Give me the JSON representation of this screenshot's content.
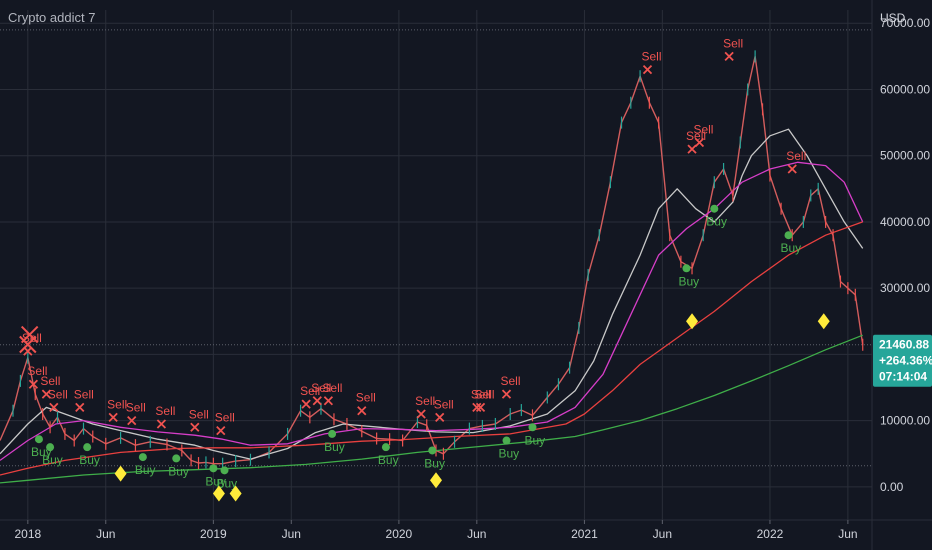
{
  "header": {
    "title": "Crypto addict 7"
  },
  "colors": {
    "background": "#131722",
    "grid": "#2a2e39",
    "price": "#d35d5d",
    "ma_white": "#c8c8c8",
    "ma_magenta": "#d63ec8",
    "ma_red": "#e8403f",
    "ma_green": "#3fae49",
    "sell": "#f05350",
    "buy": "#4caf50",
    "diamond": "#ffeb3b",
    "price_label": "#26a69a"
  },
  "price_tag": {
    "price": "21460.88",
    "change": "+264.36%",
    "countdown": "07:14:04"
  },
  "chart_data": {
    "type": "line",
    "title": "",
    "currency_label": "USD",
    "y_ticks": [
      "70000.00",
      "60000.00",
      "50000.00",
      "40000.00",
      "30000.00",
      "20000.00",
      "10000.00",
      "0.00"
    ],
    "y_tick_values": [
      70000,
      60000,
      50000,
      40000,
      30000,
      20000,
      10000,
      0
    ],
    "ylim": [
      -5000,
      72000
    ],
    "x_ticks": [
      "2018",
      "Jun",
      "2019",
      "Jun",
      "2020",
      "Jun",
      "2021",
      "Jun",
      "2022",
      "Jun"
    ],
    "x_tick_values": [
      2018.0,
      2018.42,
      2019.0,
      2019.42,
      2020.0,
      2020.42,
      2021.0,
      2021.42,
      2022.0,
      2022.42
    ],
    "xlim": [
      2017.85,
      2022.55
    ],
    "hlines": [
      69000,
      21460.88,
      3200
    ],
    "series": [
      {
        "key": "price",
        "color": "#d35d5d",
        "x": [
          2017.85,
          2017.92,
          2017.96,
          2018.0,
          2018.04,
          2018.08,
          2018.12,
          2018.16,
          2018.2,
          2018.25,
          2018.3,
          2018.35,
          2018.42,
          2018.5,
          2018.58,
          2018.66,
          2018.75,
          2018.83,
          2018.88,
          2018.92,
          2018.96,
          2019.0,
          2019.05,
          2019.12,
          2019.2,
          2019.3,
          2019.4,
          2019.47,
          2019.52,
          2019.58,
          2019.65,
          2019.72,
          2019.8,
          2019.88,
          2019.95,
          2020.02,
          2020.1,
          2020.15,
          2020.2,
          2020.24,
          2020.3,
          2020.38,
          2020.45,
          2020.52,
          2020.6,
          2020.66,
          2020.72,
          2020.8,
          2020.86,
          2020.92,
          2020.97,
          2021.02,
          2021.08,
          2021.14,
          2021.2,
          2021.25,
          2021.3,
          2021.35,
          2021.4,
          2021.46,
          2021.52,
          2021.58,
          2021.64,
          2021.7,
          2021.75,
          2021.8,
          2021.84,
          2021.88,
          2021.92,
          2021.96,
          2022.0,
          2022.06,
          2022.12,
          2022.18,
          2022.22,
          2022.26,
          2022.3,
          2022.34,
          2022.38,
          2022.42,
          2022.46,
          2022.5
        ],
        "y": [
          7000,
          11500,
          16000,
          19500,
          14000,
          11000,
          9000,
          10500,
          8000,
          7000,
          8800,
          7600,
          6500,
          7400,
          6300,
          6800,
          6400,
          5500,
          4000,
          3600,
          3700,
          3500,
          3500,
          3900,
          4100,
          5200,
          8000,
          11500,
          10500,
          11800,
          10200,
          9500,
          8400,
          7300,
          7200,
          7000,
          9800,
          9300,
          5500,
          5000,
          6800,
          8800,
          9200,
          9500,
          11000,
          11600,
          10800,
          13500,
          15500,
          18000,
          24000,
          32000,
          38000,
          46000,
          55000,
          58000,
          62000,
          58000,
          55000,
          38000,
          34000,
          33000,
          38000,
          46000,
          48000,
          44000,
          52000,
          60000,
          65000,
          57000,
          47000,
          42000,
          38000,
          40000,
          44000,
          45000,
          40000,
          38000,
          31000,
          30000,
          29000,
          21460
        ]
      },
      {
        "key": "ma_white",
        "color": "#c8c8c8",
        "x": [
          2017.85,
          2018.0,
          2018.1,
          2018.2,
          2018.35,
          2018.5,
          2018.7,
          2018.9,
          2019.0,
          2019.2,
          2019.4,
          2019.55,
          2019.7,
          2019.9,
          2020.05,
          2020.2,
          2020.4,
          2020.6,
          2020.8,
          2020.95,
          2021.05,
          2021.15,
          2021.3,
          2021.4,
          2021.5,
          2021.6,
          2021.7,
          2021.8,
          2021.85,
          2021.9,
          2022.0,
          2022.1,
          2022.2,
          2022.3,
          2022.4,
          2022.5
        ],
        "y": [
          5000,
          9500,
          12000,
          11000,
          9500,
          8500,
          7200,
          6300,
          5500,
          4200,
          5800,
          8200,
          9500,
          9000,
          8600,
          8300,
          8200,
          9200,
          11000,
          14500,
          19000,
          26000,
          35000,
          42000,
          45000,
          42000,
          40000,
          43000,
          47000,
          50000,
          53000,
          54000,
          50000,
          45000,
          40000,
          36000
        ]
      },
      {
        "key": "ma_magenta",
        "color": "#d63ec8",
        "x": [
          2017.85,
          2018.0,
          2018.15,
          2018.3,
          2018.5,
          2018.7,
          2018.9,
          2019.05,
          2019.2,
          2019.4,
          2019.6,
          2019.8,
          2020.0,
          2020.2,
          2020.4,
          2020.6,
          2020.8,
          2020.95,
          2021.1,
          2021.25,
          2021.4,
          2021.55,
          2021.7,
          2021.85,
          2022.0,
          2022.15,
          2022.3,
          2022.4,
          2022.5
        ],
        "y": [
          4000,
          7000,
          9500,
          10000,
          9000,
          8300,
          7800,
          7200,
          6300,
          6500,
          8000,
          8800,
          8700,
          8500,
          8700,
          9000,
          9800,
          12000,
          17000,
          26000,
          35000,
          39000,
          42000,
          46000,
          48000,
          49000,
          48500,
          46000,
          40000
        ]
      },
      {
        "key": "ma_red",
        "color": "#e8403f",
        "x": [
          2017.85,
          2018.0,
          2018.2,
          2018.5,
          2018.8,
          2019.0,
          2019.2,
          2019.5,
          2019.8,
          2020.0,
          2020.3,
          2020.6,
          2020.9,
          2021.0,
          2021.15,
          2021.3,
          2021.5,
          2021.7,
          2021.9,
          2022.1,
          2022.3,
          2022.5
        ],
        "y": [
          1800,
          2800,
          4000,
          5200,
          5800,
          5900,
          5900,
          6300,
          6900,
          7100,
          7600,
          8000,
          9500,
          11000,
          14500,
          18500,
          22500,
          26500,
          31000,
          35000,
          38000,
          40000
        ]
      },
      {
        "key": "ma_green",
        "color": "#3fae49",
        "x": [
          2017.85,
          2018.0,
          2018.3,
          2018.6,
          2018.9,
          2019.2,
          2019.5,
          2019.8,
          2020.1,
          2020.4,
          2020.7,
          2020.95,
          2021.1,
          2021.3,
          2021.5,
          2021.7,
          2021.9,
          2022.1,
          2022.3,
          2022.5
        ],
        "y": [
          600,
          1000,
          1800,
          2300,
          2600,
          2900,
          3400,
          4200,
          5200,
          6000,
          6800,
          7600,
          8600,
          10000,
          11800,
          13800,
          16000,
          18300,
          20700,
          22900
        ]
      }
    ],
    "annotations": {
      "sell": [
        {
          "x": 2018.0,
          "y": 20500,
          "label": "Sell"
        },
        {
          "x": 2018.03,
          "y": 15500,
          "label": "Sell"
        },
        {
          "x": 2018.1,
          "y": 14000,
          "label": "Sell"
        },
        {
          "x": 2018.14,
          "y": 12000,
          "label": "Sell"
        },
        {
          "x": 2018.28,
          "y": 12000,
          "label": "Sell"
        },
        {
          "x": 2018.46,
          "y": 10500,
          "label": "Sell"
        },
        {
          "x": 2018.56,
          "y": 10000,
          "label": "Sell"
        },
        {
          "x": 2018.72,
          "y": 9500,
          "label": "Sell"
        },
        {
          "x": 2018.9,
          "y": 9000,
          "label": "Sell"
        },
        {
          "x": 2019.04,
          "y": 8500,
          "label": "Sell"
        },
        {
          "x": 2019.5,
          "y": 12500,
          "label": "Sell"
        },
        {
          "x": 2019.56,
          "y": 13000,
          "label": "Sell"
        },
        {
          "x": 2019.62,
          "y": 13000,
          "label": "Sell"
        },
        {
          "x": 2019.8,
          "y": 11500,
          "label": "Sell"
        },
        {
          "x": 2020.12,
          "y": 11000,
          "label": "Sell"
        },
        {
          "x": 2020.22,
          "y": 10500,
          "label": "Sell"
        },
        {
          "x": 2020.42,
          "y": 12000,
          "label": "Sell"
        },
        {
          "x": 2020.44,
          "y": 12000,
          "label": "Sell"
        },
        {
          "x": 2020.58,
          "y": 14000,
          "label": "Sell"
        },
        {
          "x": 2021.34,
          "y": 63000,
          "label": "Sell"
        },
        {
          "x": 2021.78,
          "y": 65000,
          "label": "Sell"
        },
        {
          "x": 2021.62,
          "y": 52000,
          "label": "Sell"
        },
        {
          "x": 2021.58,
          "y": 51000,
          "label": "Sell"
        },
        {
          "x": 2022.12,
          "y": 48000,
          "label": "Sell"
        }
      ],
      "buy": [
        {
          "x": 2018.06,
          "y": 7200,
          "label": "Buy"
        },
        {
          "x": 2018.12,
          "y": 6000,
          "label": "Buy"
        },
        {
          "x": 2018.32,
          "y": 6000,
          "label": "Buy"
        },
        {
          "x": 2018.62,
          "y": 4500,
          "label": "Buy"
        },
        {
          "x": 2018.8,
          "y": 4300,
          "label": "Buy"
        },
        {
          "x": 2019.0,
          "y": 2800,
          "label": "Buy"
        },
        {
          "x": 2019.06,
          "y": 2500,
          "label": "Buy"
        },
        {
          "x": 2019.64,
          "y": 8000,
          "label": "Buy"
        },
        {
          "x": 2019.93,
          "y": 6000,
          "label": "Buy"
        },
        {
          "x": 2020.18,
          "y": 5500,
          "label": "Buy"
        },
        {
          "x": 2020.58,
          "y": 7000,
          "label": "Buy"
        },
        {
          "x": 2020.72,
          "y": 9000,
          "label": "Buy"
        },
        {
          "x": 2021.55,
          "y": 33000,
          "label": "Buy"
        },
        {
          "x": 2021.7,
          "y": 42000,
          "label": "Buy"
        },
        {
          "x": 2022.1,
          "y": 38000,
          "label": "Buy"
        }
      ],
      "diamonds": [
        2018.5,
        2019.03,
        2019.12,
        2020.2,
        2021.58,
        2022.29
      ]
    }
  }
}
